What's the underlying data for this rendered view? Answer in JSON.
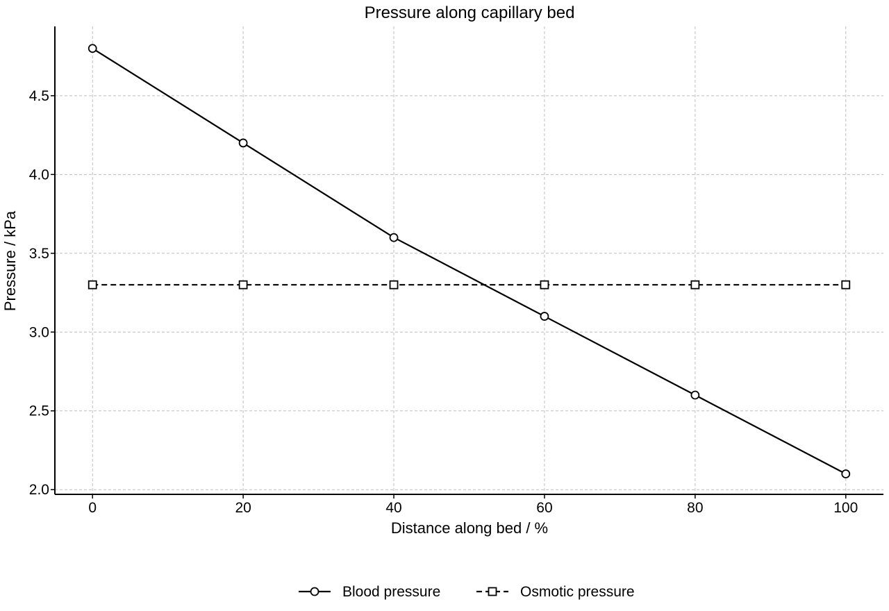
{
  "chart_data": {
    "type": "line",
    "title": "Pressure along capillary bed",
    "xlabel": "Distance along bed / %",
    "ylabel": "Pressure / kPa",
    "x": [
      0,
      20,
      40,
      60,
      80,
      100
    ],
    "xlim": [
      -5,
      105
    ],
    "ylim": [
      1.97,
      4.94
    ],
    "xticks": [
      "0",
      "20",
      "40",
      "60",
      "80",
      "100"
    ],
    "yticks": [
      "2.0",
      "2.5",
      "3.0",
      "3.5",
      "4.0",
      "4.5"
    ],
    "grid": true,
    "legend_position": "bottom-center",
    "series": [
      {
        "name": "Blood pressure",
        "values": [
          4.8,
          4.2,
          3.6,
          3.1,
          2.6,
          2.1
        ],
        "line_style": "solid",
        "marker": "circle",
        "color": "#000000"
      },
      {
        "name": "Osmotic pressure",
        "values": [
          3.3,
          3.3,
          3.3,
          3.3,
          3.3,
          3.3
        ],
        "line_style": "dashed",
        "marker": "square",
        "color": "#000000"
      }
    ]
  }
}
